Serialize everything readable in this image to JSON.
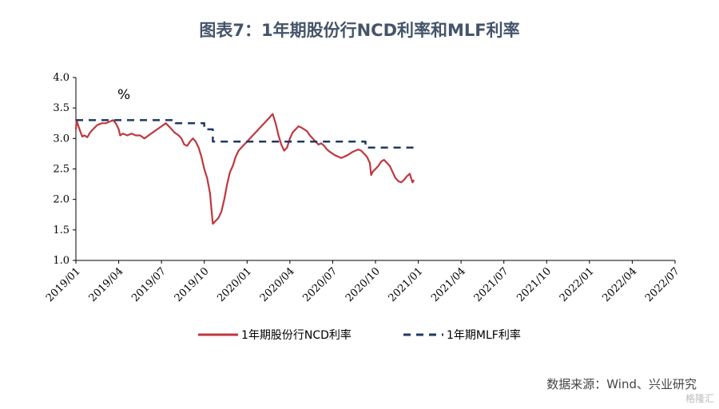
{
  "title": "图表7：1年期股份行NCD利率和MLF利率",
  "unit": "%",
  "source": "数据来源：Wind、兴业研究",
  "watermark": "格隆汇",
  "chart_data": {
    "type": "line",
    "ylim": [
      1.0,
      4.0
    ],
    "yticks": [
      "4.0",
      "3.5",
      "3.0",
      "2.5",
      "2.0",
      "1.5",
      "1.0"
    ],
    "xticks": [
      "2019/01",
      "2019/04",
      "2019/07",
      "2019/10",
      "2020/01",
      "2020/04",
      "2020/07",
      "2020/10",
      "2021/01",
      "2021/04",
      "2021/07",
      "2021/10",
      "2022/01",
      "2022/04",
      "2022/07"
    ],
    "grid": false,
    "legend_position": "bottom",
    "series": [
      {
        "name": "1年期股份行NCD利率",
        "color": "#C0373F",
        "style": "solid",
        "points": [
          [
            0.0,
            3.15
          ],
          [
            0.05,
            3.3
          ],
          [
            0.15,
            3.22
          ],
          [
            0.3,
            3.12
          ],
          [
            0.45,
            3.03
          ],
          [
            0.6,
            3.05
          ],
          [
            0.8,
            3.02
          ],
          [
            1.0,
            3.1
          ],
          [
            1.2,
            3.15
          ],
          [
            1.5,
            3.22
          ],
          [
            1.8,
            3.25
          ],
          [
            2.1,
            3.25
          ],
          [
            2.4,
            3.28
          ],
          [
            2.6,
            3.3
          ],
          [
            2.8,
            3.25
          ],
          [
            3.0,
            3.15
          ],
          [
            3.1,
            3.05
          ],
          [
            3.3,
            3.08
          ],
          [
            3.6,
            3.05
          ],
          [
            3.9,
            3.08
          ],
          [
            4.2,
            3.05
          ],
          [
            4.5,
            3.05
          ],
          [
            4.8,
            3.0
          ],
          [
            5.1,
            3.05
          ],
          [
            5.4,
            3.1
          ],
          [
            5.7,
            3.15
          ],
          [
            6.0,
            3.2
          ],
          [
            6.3,
            3.25
          ],
          [
            6.6,
            3.18
          ],
          [
            6.9,
            3.1
          ],
          [
            7.2,
            3.05
          ],
          [
            7.4,
            3.0
          ],
          [
            7.6,
            2.9
          ],
          [
            7.8,
            2.88
          ],
          [
            8.0,
            2.95
          ],
          [
            8.2,
            3.0
          ],
          [
            8.4,
            2.95
          ],
          [
            8.6,
            2.85
          ],
          [
            8.8,
            2.7
          ],
          [
            9.0,
            2.5
          ],
          [
            9.2,
            2.35
          ],
          [
            9.4,
            2.1
          ],
          [
            9.5,
            1.85
          ],
          [
            9.6,
            1.6
          ],
          [
            9.8,
            1.65
          ],
          [
            10.0,
            1.7
          ],
          [
            10.2,
            1.8
          ],
          [
            10.4,
            2.0
          ],
          [
            10.6,
            2.25
          ],
          [
            10.8,
            2.45
          ],
          [
            11.0,
            2.55
          ],
          [
            11.2,
            2.7
          ],
          [
            11.4,
            2.8
          ],
          [
            11.6,
            2.85
          ],
          [
            11.8,
            2.9
          ],
          [
            12.0,
            2.95
          ],
          [
            12.2,
            3.0
          ],
          [
            12.4,
            3.05
          ],
          [
            12.6,
            3.1
          ],
          [
            12.8,
            3.15
          ],
          [
            13.0,
            3.2
          ],
          [
            13.2,
            3.25
          ],
          [
            13.4,
            3.3
          ],
          [
            13.6,
            3.35
          ],
          [
            13.7,
            3.38
          ],
          [
            13.8,
            3.4
          ],
          [
            14.0,
            3.25
          ],
          [
            14.2,
            3.05
          ],
          [
            14.4,
            2.9
          ],
          [
            14.6,
            2.8
          ],
          [
            14.8,
            2.85
          ],
          [
            15.0,
            3.0
          ],
          [
            15.2,
            3.1
          ],
          [
            15.4,
            3.15
          ],
          [
            15.6,
            3.2
          ],
          [
            15.8,
            3.18
          ],
          [
            16.0,
            3.15
          ],
          [
            16.2,
            3.12
          ],
          [
            16.4,
            3.05
          ],
          [
            16.6,
            3.0
          ],
          [
            16.8,
            2.95
          ],
          [
            17.0,
            2.9
          ],
          [
            17.2,
            2.92
          ],
          [
            17.4,
            2.88
          ],
          [
            17.6,
            2.82
          ],
          [
            17.8,
            2.78
          ],
          [
            18.0,
            2.75
          ],
          [
            18.2,
            2.72
          ],
          [
            18.4,
            2.7
          ],
          [
            18.6,
            2.68
          ],
          [
            18.8,
            2.7
          ],
          [
            19.0,
            2.72
          ],
          [
            19.2,
            2.75
          ],
          [
            19.4,
            2.78
          ],
          [
            19.6,
            2.8
          ],
          [
            19.8,
            2.82
          ],
          [
            20.0,
            2.8
          ],
          [
            20.2,
            2.75
          ],
          [
            20.4,
            2.7
          ],
          [
            20.6,
            2.6
          ],
          [
            20.7,
            2.4
          ],
          [
            20.8,
            2.45
          ],
          [
            21.0,
            2.5
          ],
          [
            21.2,
            2.55
          ],
          [
            21.4,
            2.62
          ],
          [
            21.6,
            2.65
          ],
          [
            21.8,
            2.6
          ],
          [
            22.0,
            2.55
          ],
          [
            22.2,
            2.45
          ],
          [
            22.4,
            2.35
          ],
          [
            22.6,
            2.3
          ],
          [
            22.8,
            2.28
          ],
          [
            23.0,
            2.32
          ],
          [
            23.2,
            2.38
          ],
          [
            23.4,
            2.42
          ],
          [
            23.5,
            2.35
          ],
          [
            23.6,
            2.28
          ],
          [
            23.7,
            2.32
          ]
        ]
      },
      {
        "name": "1年期MLF利率",
        "color": "#1F3864",
        "style": "dashed",
        "points": [
          [
            0.0,
            3.3
          ],
          [
            7.0,
            3.3
          ],
          [
            7.0,
            3.25
          ],
          [
            9.0,
            3.25
          ],
          [
            9.0,
            3.15
          ],
          [
            9.6,
            3.15
          ],
          [
            9.6,
            2.95
          ],
          [
            19.5,
            2.95
          ],
          [
            19.5,
            2.95
          ],
          [
            20.3,
            2.95
          ],
          [
            20.3,
            2.85
          ],
          [
            23.7,
            2.85
          ]
        ]
      }
    ]
  }
}
